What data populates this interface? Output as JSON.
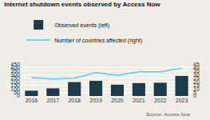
{
  "chart_data": {
    "type": "bar",
    "title": "Internet shutdown events observed by Access Now",
    "categories": [
      "2016",
      "2017",
      "2018",
      "2019",
      "2020",
      "2021",
      "2022",
      "2023"
    ],
    "series": [
      {
        "name": "Observed events (left)",
        "type": "bar",
        "color": "#1c3a4a",
        "values": [
          75,
          108,
          196,
          213,
          159,
          182,
          187,
          283
        ]
      },
      {
        "name": "Number of countries affected (right)",
        "type": "line",
        "color": "#5bc8e8",
        "axis": "y2",
        "values": [
          26,
          24,
          25,
          33,
          29,
          34,
          34,
          39
        ]
      }
    ],
    "ylim": [
      0,
      450
    ],
    "yticks": [
      0,
      50,
      100,
      150,
      200,
      250,
      300,
      350,
      400,
      450
    ],
    "y2lim": [
      0,
      45
    ],
    "y2ticks": [
      0,
      5,
      10,
      15,
      20,
      25,
      30,
      35,
      40,
      45
    ],
    "grid": true,
    "legend": "top",
    "annotations": [
      "Source: Access Now"
    ]
  }
}
